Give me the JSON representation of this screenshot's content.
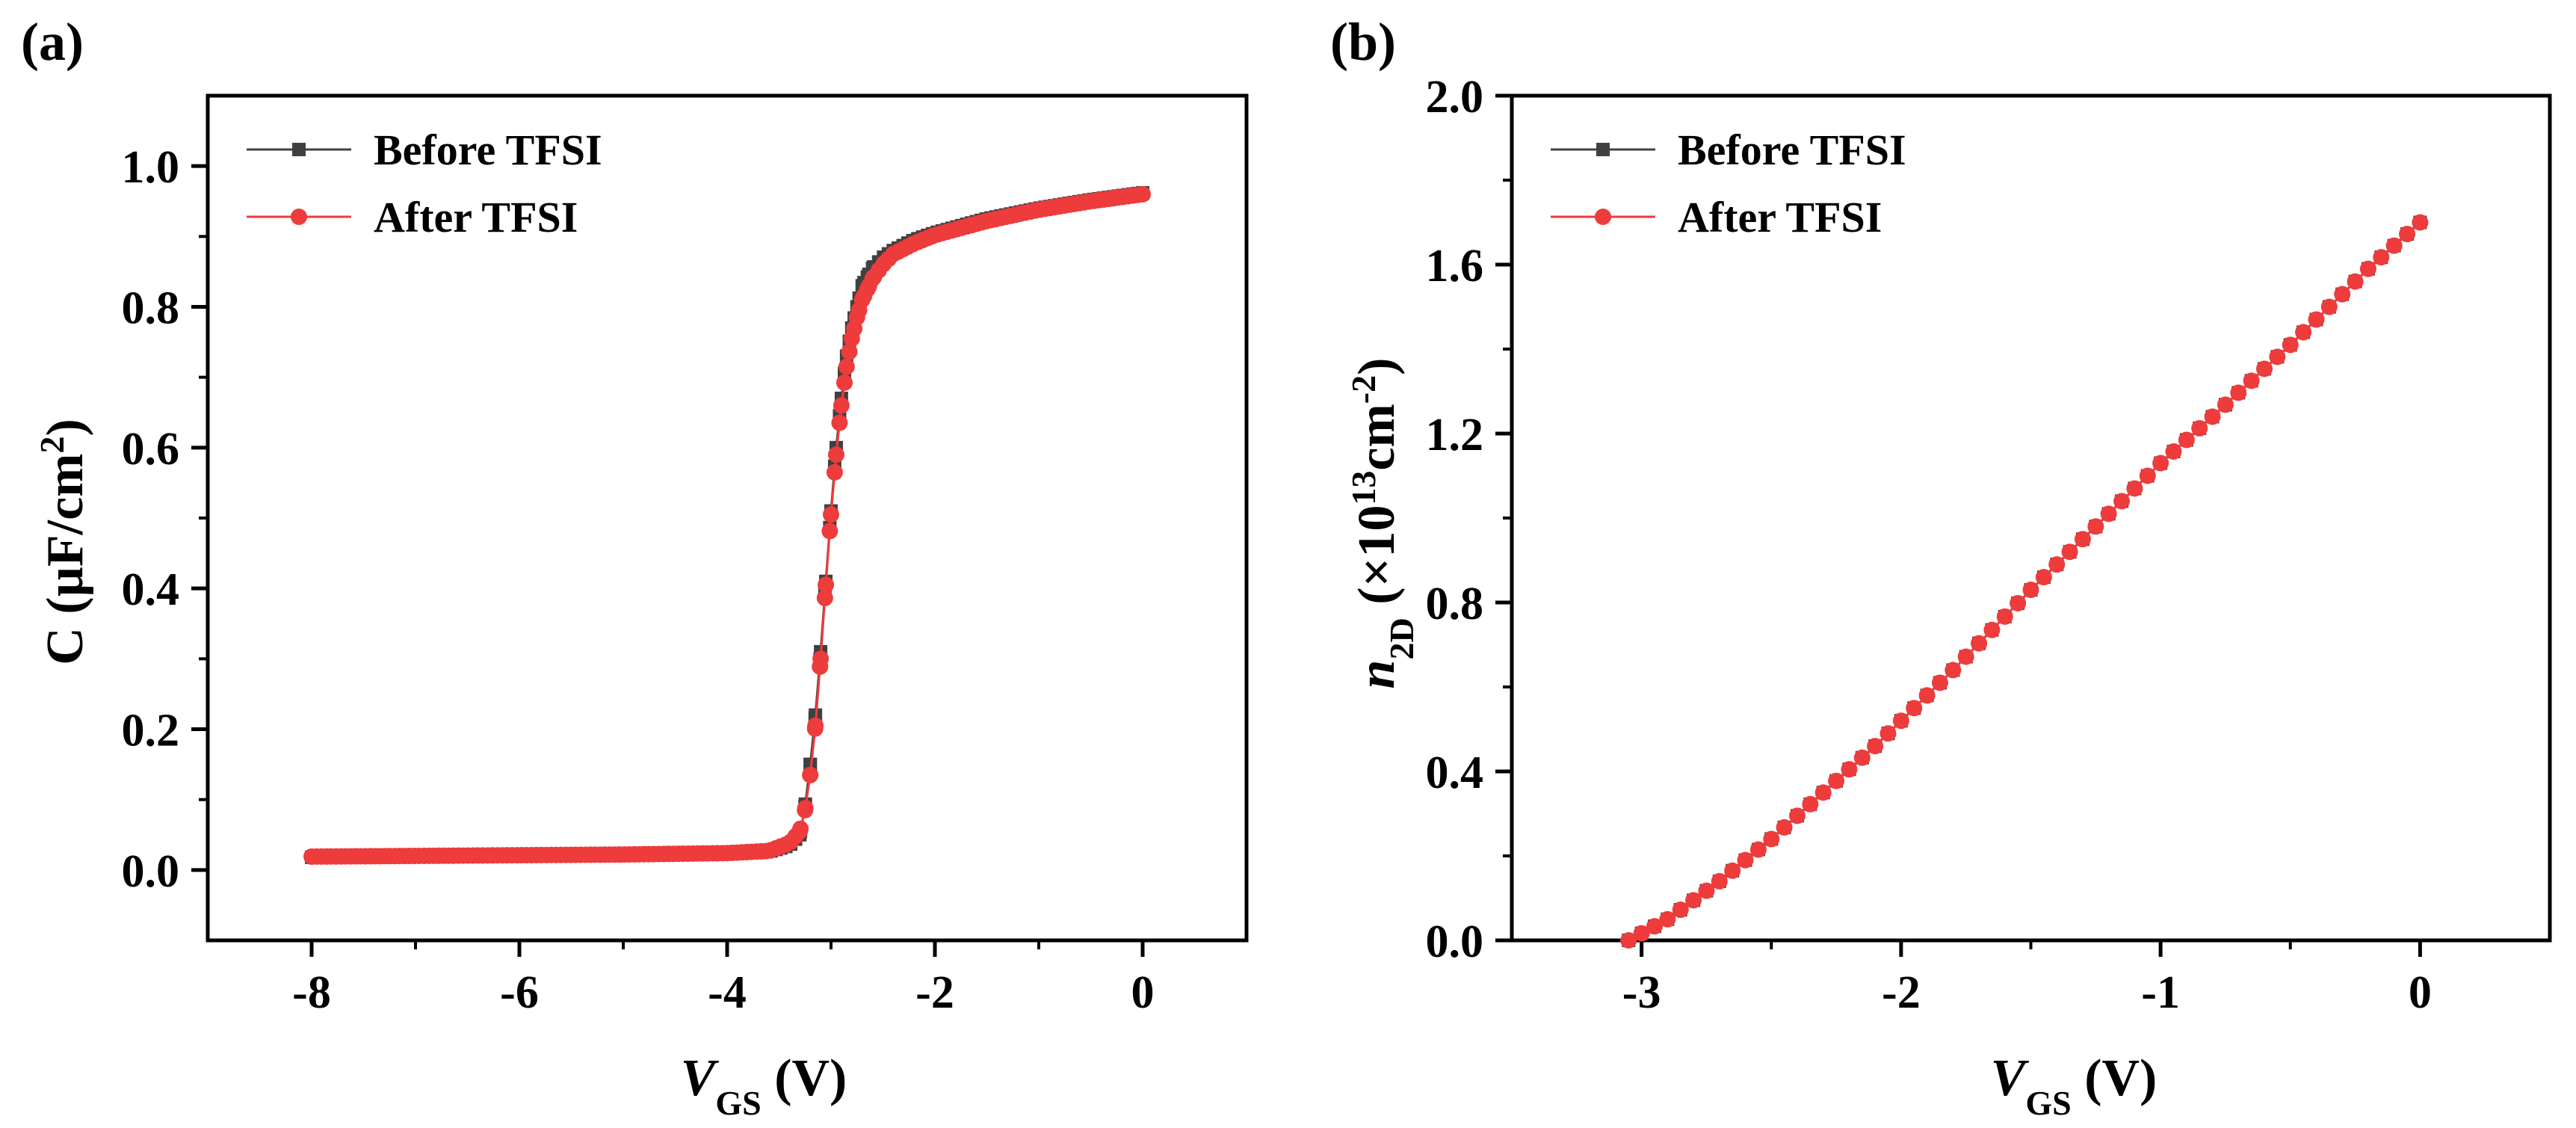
{
  "colors": {
    "before": "#404040",
    "after": "#ee3b3b",
    "axis": "#000000"
  },
  "chart_data": [
    {
      "panel_label": "(a)",
      "type": "line",
      "xlabel_main": "V",
      "xlabel_sub": "GS",
      "xlabel_unit": " (V)",
      "ylabel": "C (µF/cm",
      "ylabel_sup": "2",
      "ylabel_end": ")",
      "xlim": [
        -9,
        1
      ],
      "ylim": [
        -0.1,
        1.1
      ],
      "xticks": [
        -8,
        -6,
        -4,
        -2,
        0
      ],
      "xtick_labels": [
        "-8",
        "-6",
        "-4",
        "-2",
        "0"
      ],
      "yticks": [
        0.0,
        0.2,
        0.4,
        0.6,
        0.8,
        1.0
      ],
      "ytick_labels": [
        "0.0",
        "0.2",
        "0.4",
        "0.6",
        "0.8",
        "1.0"
      ],
      "legend": [
        "Before TFSI",
        "After TFSI"
      ],
      "legend_position": "top-left",
      "series": [
        {
          "name": "Before TFSI",
          "marker": "square",
          "x": [
            -8,
            -7,
            -6,
            -5,
            -4,
            -3.6,
            -3.4,
            -3.3,
            -3.25,
            -3.2,
            -3.15,
            -3.1,
            -3.05,
            -3.0,
            -2.95,
            -2.9,
            -2.85,
            -2.8,
            -2.75,
            -2.7,
            -2.6,
            -2.5,
            -2.4,
            -2.2,
            -2.0,
            -1.5,
            -1.0,
            -0.5,
            0
          ],
          "y": [
            0.018,
            0.019,
            0.02,
            0.021,
            0.023,
            0.026,
            0.035,
            0.05,
            0.09,
            0.15,
            0.22,
            0.31,
            0.41,
            0.51,
            0.6,
            0.67,
            0.73,
            0.77,
            0.8,
            0.83,
            0.855,
            0.87,
            0.88,
            0.895,
            0.905,
            0.925,
            0.94,
            0.952,
            0.962
          ]
        },
        {
          "name": "After TFSI",
          "marker": "circle",
          "x": [
            -8,
            -7,
            -6,
            -5,
            -4,
            -3.6,
            -3.4,
            -3.3,
            -3.25,
            -3.2,
            -3.15,
            -3.1,
            -3.05,
            -3.0,
            -2.95,
            -2.9,
            -2.85,
            -2.8,
            -2.75,
            -2.7,
            -2.6,
            -2.5,
            -2.4,
            -2.2,
            -2.0,
            -1.5,
            -1.0,
            -0.5,
            0
          ],
          "y": [
            0.019,
            0.02,
            0.021,
            0.022,
            0.024,
            0.027,
            0.038,
            0.055,
            0.085,
            0.135,
            0.205,
            0.3,
            0.405,
            0.505,
            0.59,
            0.66,
            0.715,
            0.755,
            0.785,
            0.81,
            0.84,
            0.86,
            0.875,
            0.89,
            0.902,
            0.922,
            0.938,
            0.95,
            0.96
          ]
        }
      ]
    },
    {
      "panel_label": "(b)",
      "type": "line",
      "xlabel_main": "V",
      "xlabel_sub": "GS",
      "xlabel_unit": " (V)",
      "ylabel": "n",
      "ylabel_sub": "2D",
      "ylabel_mid": " (×10",
      "ylabel_sup": "13",
      "ylabel_mid2": "cm",
      "ylabel_sup2": "-2",
      "ylabel_end": ")",
      "xlim": [
        -3.5,
        0.5
      ],
      "ylim": [
        0.0,
        2.0
      ],
      "xticks": [
        -3,
        -2,
        -1,
        0
      ],
      "xtick_labels": [
        "-3",
        "-2",
        "-1",
        "0"
      ],
      "yticks": [
        0.0,
        0.4,
        0.8,
        1.2,
        1.6,
        2.0
      ],
      "ytick_labels": [
        "0.0",
        "0.4",
        "0.8",
        "1.2",
        "1.6",
        "2.0"
      ],
      "legend": [
        "Before TFSI",
        "After TFSI"
      ],
      "legend_position": "top-left",
      "series": [
        {
          "name": "Before TFSI",
          "marker": "square",
          "x_start": -3.05,
          "x_end": 0,
          "n_points": 62,
          "x": [
            -3.05,
            -2.9,
            -2.7,
            -2.5,
            -2.3,
            -2.1,
            -2.0,
            -1.8,
            -1.5,
            -1.2,
            -1.0,
            -0.8,
            -0.5,
            -0.2,
            0
          ],
          "y": [
            0.0,
            0.05,
            0.14,
            0.24,
            0.35,
            0.46,
            0.52,
            0.64,
            0.83,
            1.01,
            1.13,
            1.24,
            1.41,
            1.59,
            1.7
          ]
        },
        {
          "name": "After TFSI",
          "marker": "circle",
          "x_start": -3.05,
          "x_end": 0,
          "n_points": 62,
          "x": [
            -3.05,
            -2.9,
            -2.7,
            -2.5,
            -2.3,
            -2.1,
            -2.0,
            -1.8,
            -1.5,
            -1.2,
            -1.0,
            -0.8,
            -0.5,
            -0.2,
            0
          ],
          "y": [
            0.0,
            0.05,
            0.14,
            0.24,
            0.35,
            0.46,
            0.52,
            0.64,
            0.83,
            1.01,
            1.13,
            1.24,
            1.41,
            1.59,
            1.7
          ]
        }
      ]
    }
  ]
}
